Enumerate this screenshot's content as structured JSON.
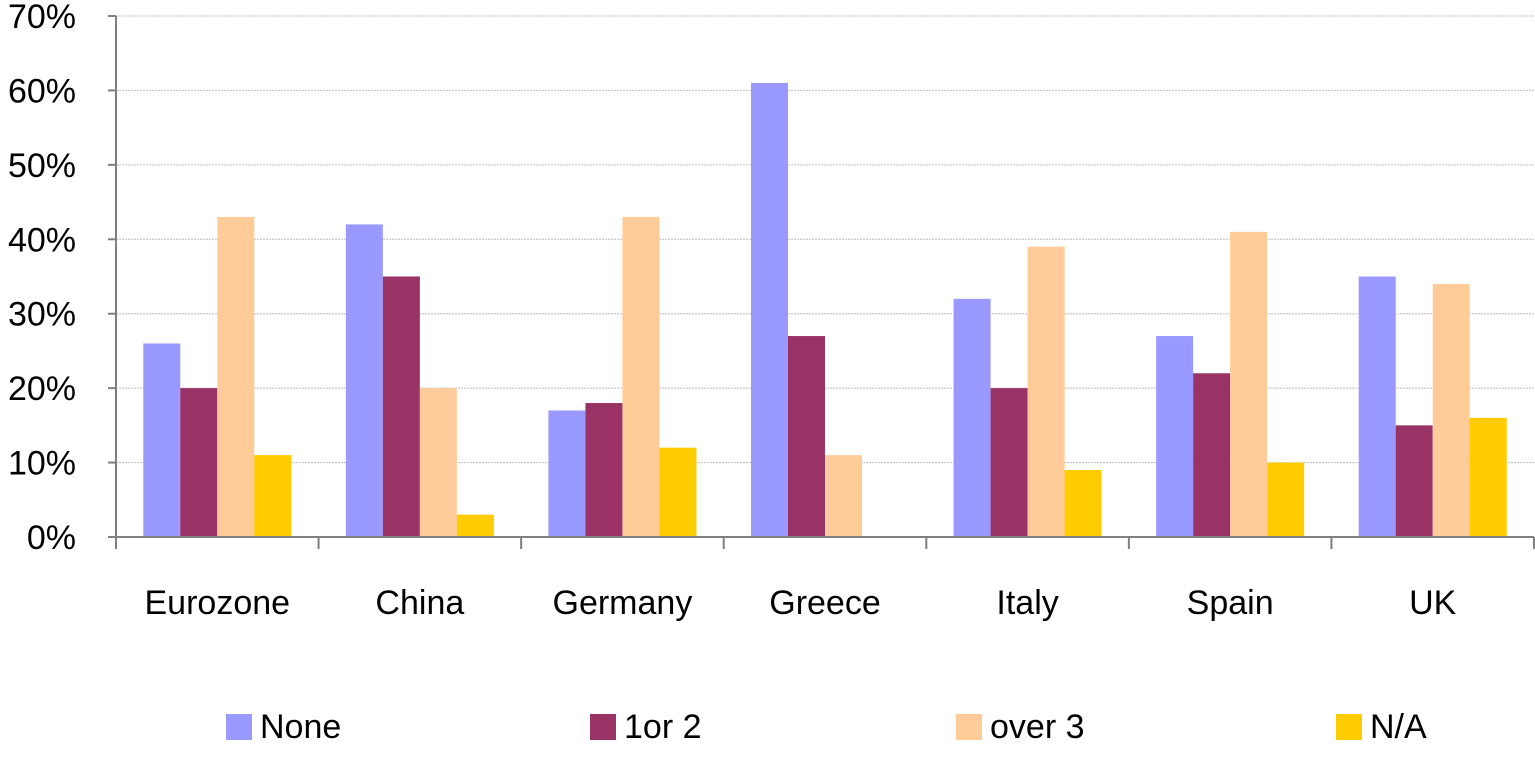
{
  "chart_data": {
    "type": "bar",
    "title": "",
    "xlabel": "",
    "ylabel": "",
    "categories": [
      "Eurozone",
      "China",
      "Germany",
      "Greece",
      "Italy",
      "Spain",
      "UK"
    ],
    "ylim": [
      0,
      70
    ],
    "yticks": [
      0,
      10,
      20,
      30,
      40,
      50,
      60,
      70
    ],
    "ytick_labels": [
      "0%",
      "10%",
      "20%",
      "30%",
      "40%",
      "50%",
      "60%",
      "70%"
    ],
    "grid": true,
    "legend_position": "bottom",
    "series": [
      {
        "name": "None",
        "color": "#9999ff",
        "values": [
          26,
          42,
          17,
          61,
          32,
          27,
          35
        ]
      },
      {
        "name": "1or 2",
        "color": "#993366",
        "values": [
          20,
          35,
          18,
          27,
          20,
          22,
          15
        ]
      },
      {
        "name": "over 3",
        "color": "#ffcc99",
        "values": [
          43,
          20,
          43,
          11,
          39,
          41,
          34
        ]
      },
      {
        "name": "N/A",
        "color": "#ffcc00",
        "values": [
          11,
          3,
          12,
          0,
          9,
          10,
          16
        ]
      }
    ]
  }
}
